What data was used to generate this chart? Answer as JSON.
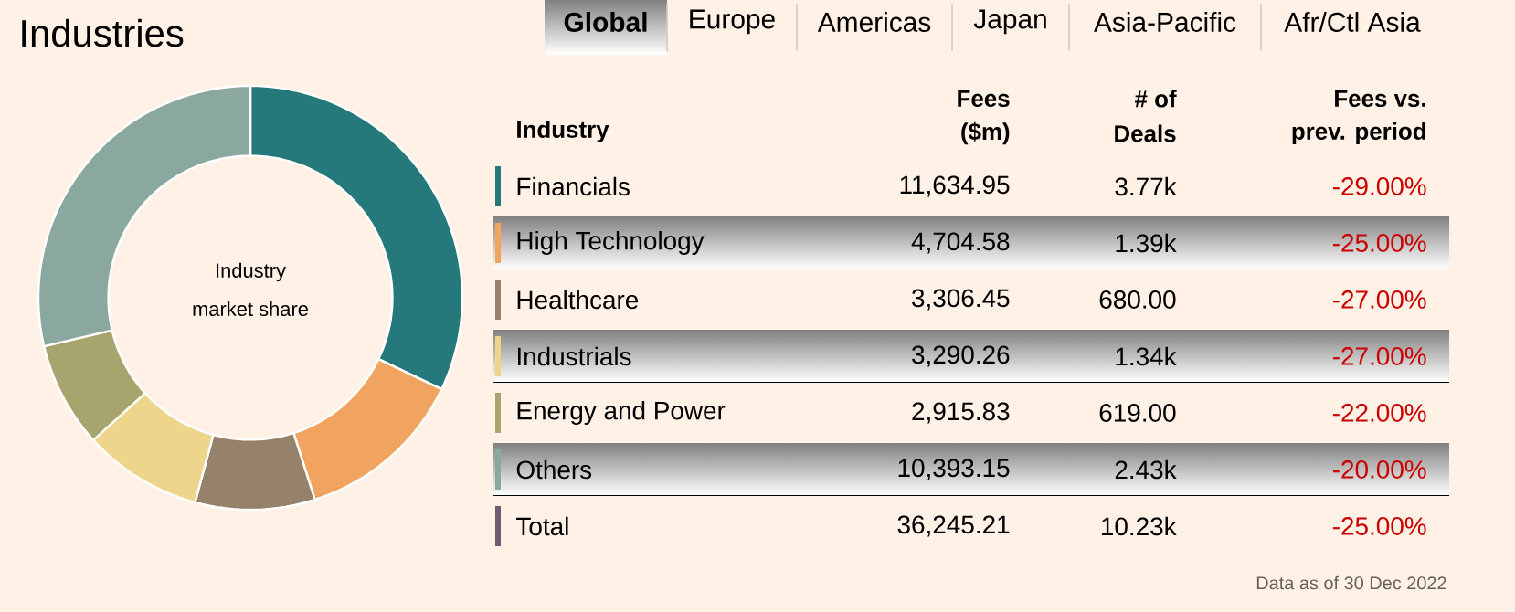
{
  "chart_data": {
    "type": "donut",
    "title": "Industries",
    "categories": [
      "Financials",
      "High Technology",
      "Healthcare",
      "Industrials",
      "Energy and Power",
      "Others"
    ],
    "values": [
      11634.95,
      4704.58,
      3306.45,
      3290.26,
      2915.83,
      10393.15
    ],
    "value_labels": [
      "11,634.95",
      "4,704.58",
      "3,306.45",
      "3,290.26",
      "2,915.83",
      "10,393.15"
    ],
    "colors": [
      "#25797a",
      "#f0a45f",
      "#96816a",
      "#edd68c",
      "#a8a46e",
      "#8aa8a0"
    ],
    "legend": "right",
    "annotations": [
      "Industry",
      "market share",
      "Global",
      "Europe",
      "Americas",
      "Japan",
      "Asia-Pacific",
      "Afr/Ctl Asia",
      "Industry",
      "Fees",
      "($m)",
      "# of",
      "Deals",
      "Fees vs.",
      "prev. period",
      "3.77k",
      "1.39k",
      "680.00",
      "1.34k",
      "619.00",
      "2.43k",
      "-29.00%",
      "-25.00%",
      "-27.00%",
      "-27.00%",
      "-22.00%",
      "-20.00%",
      "Total",
      "36,245.21",
      "10.23k",
      "-25.00%",
      "Data as of 30 Dec 2022"
    ]
  }
}
